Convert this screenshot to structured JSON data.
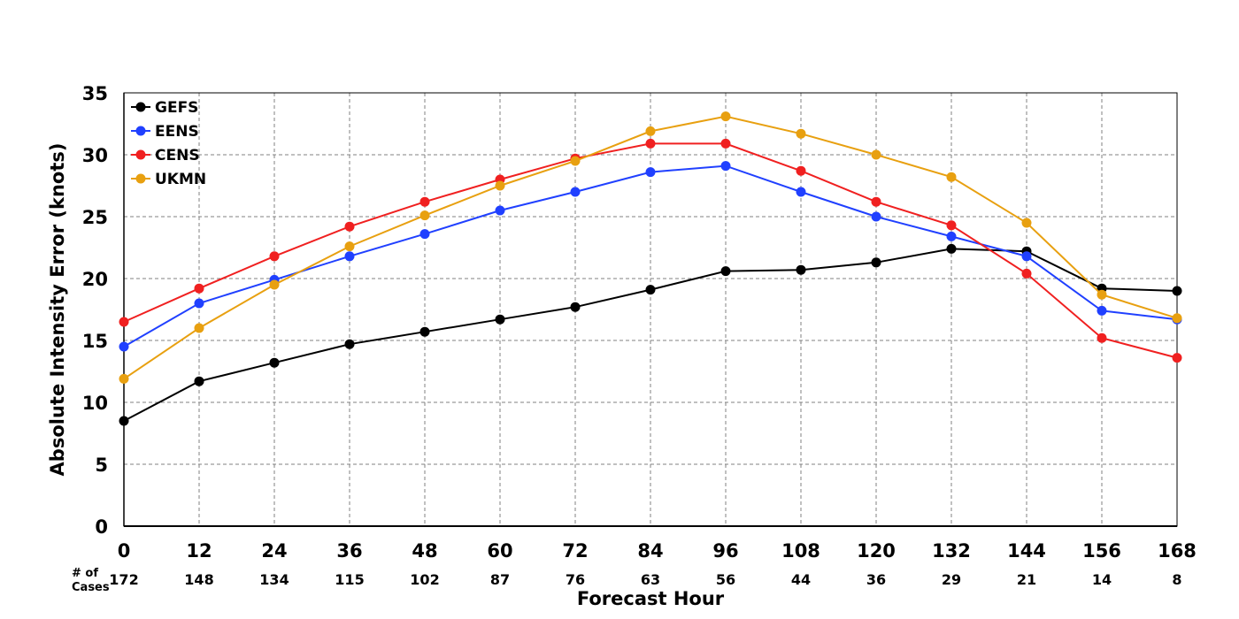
{
  "chart_data": {
    "type": "line",
    "x": [
      0,
      12,
      24,
      36,
      48,
      60,
      72,
      84,
      96,
      108,
      120,
      132,
      144,
      156,
      168
    ],
    "xlabel": "Forecast Hour",
    "ylabel": "Absolute Intensity Error (knots)",
    "ylim": [
      0,
      35
    ],
    "yticks": [
      0,
      5,
      10,
      15,
      20,
      25,
      30,
      35
    ],
    "xlim": [
      0,
      168
    ],
    "grid": true,
    "legend_position": "top-left",
    "cases_label_line1": "# of",
    "cases_label_line2": "Cases",
    "cases": [
      172,
      148,
      134,
      115,
      102,
      87,
      76,
      63,
      56,
      44,
      36,
      29,
      21,
      14,
      8
    ],
    "series": [
      {
        "name": "GEFS",
        "color": "#000000",
        "values": [
          8.5,
          11.7,
          13.2,
          14.7,
          15.7,
          16.7,
          17.7,
          19.1,
          20.6,
          20.7,
          21.3,
          22.4,
          22.2,
          19.2,
          19.0
        ]
      },
      {
        "name": "EENS",
        "color": "#2040ff",
        "values": [
          14.5,
          18.0,
          19.9,
          21.8,
          23.6,
          25.5,
          27.0,
          28.6,
          29.1,
          27.0,
          25.0,
          23.4,
          21.8,
          17.4,
          16.7
        ]
      },
      {
        "name": "CENS",
        "color": "#f02020",
        "values": [
          16.5,
          19.2,
          21.8,
          24.2,
          26.2,
          28.0,
          29.7,
          30.9,
          30.9,
          28.7,
          26.2,
          24.3,
          20.4,
          15.2,
          13.6
        ]
      },
      {
        "name": "UKMN",
        "color": "#e8a010",
        "values": [
          11.9,
          16.0,
          19.5,
          22.6,
          25.1,
          27.5,
          29.5,
          31.9,
          33.1,
          31.7,
          30.0,
          28.2,
          24.5,
          18.7,
          16.8
        ]
      }
    ]
  }
}
